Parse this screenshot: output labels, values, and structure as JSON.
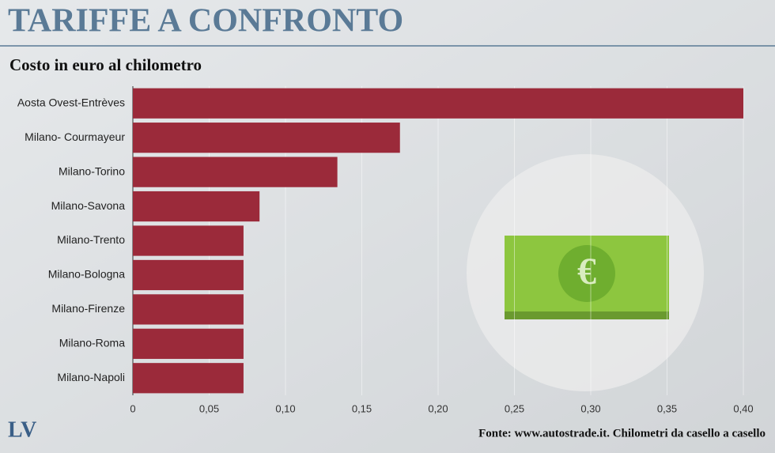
{
  "chart_data": {
    "type": "barh",
    "title": "TARIFFE A CONFRONTO",
    "subtitle": "Costo in euro al chilometro",
    "logo": "LV",
    "source": "Fonte: www.autostrade.it. Chilometri da casello a casello",
    "categories": [
      "Aosta Ovest-Entrèves",
      "Milano- Courmayeur",
      "Milano-Torino",
      "Milano-Savona",
      "Milano-Trento",
      "Milano-Bologna",
      "Milano-Firenze",
      "Milano-Roma",
      "Milano-Napoli"
    ],
    "values": [
      0.4,
      0.175,
      0.134,
      0.083,
      0.0725,
      0.0725,
      0.0725,
      0.0725,
      0.0725
    ],
    "color": "#9b2a3a",
    "xlim": [
      0,
      0.4
    ],
    "xticks": [
      0,
      {
        "value": 0.05,
        "label": "0,05"
      },
      {
        "value": 0.1,
        "label": "0,10"
      },
      {
        "value": 0.15,
        "label": "0,15"
      },
      {
        "value": 0.2,
        "label": "0,20"
      },
      {
        "value": 0.25,
        "label": "0,25"
      },
      {
        "value": 0.3,
        "label": "0,30"
      },
      {
        "value": 0.35,
        "label": "0,35"
      },
      {
        "value": 0.4,
        "label": "0,40"
      }
    ],
    "grid": true
  }
}
